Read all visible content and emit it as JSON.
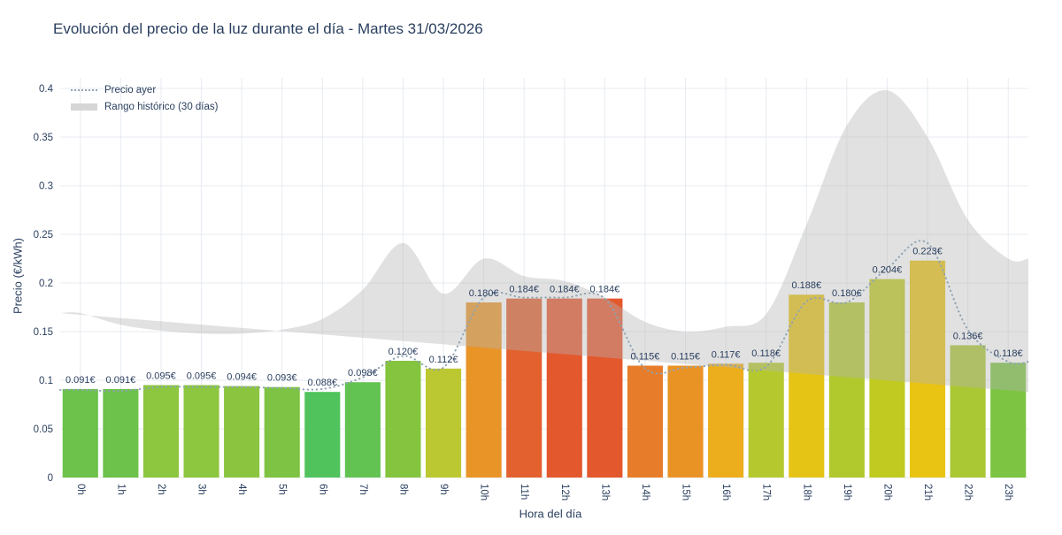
{
  "chart_data": {
    "type": "bar",
    "title": "Evolución del precio de la luz durante el día - Martes 31/03/2026",
    "xlabel": "Hora del día",
    "ylabel": "Precio (€/kWh)",
    "categories": [
      "0h",
      "1h",
      "2h",
      "3h",
      "4h",
      "5h",
      "6h",
      "7h",
      "8h",
      "9h",
      "10h",
      "11h",
      "12h",
      "13h",
      "14h",
      "15h",
      "16h",
      "17h",
      "18h",
      "19h",
      "20h",
      "21h",
      "22h",
      "23h"
    ],
    "bars": {
      "values": [
        0.091,
        0.091,
        0.095,
        0.095,
        0.094,
        0.093,
        0.088,
        0.098,
        0.12,
        0.112,
        0.18,
        0.184,
        0.184,
        0.184,
        0.115,
        0.115,
        0.117,
        0.118,
        0.188,
        0.18,
        0.204,
        0.223,
        0.136,
        0.118
      ],
      "labels": [
        "0.091€",
        "0.091€",
        "0.095€",
        "0.095€",
        "0.094€",
        "0.093€",
        "0.088€",
        "0.098€",
        "0.120€",
        "0.112€",
        "0.180€",
        "0.184€",
        "0.184€",
        "0.184€",
        "0.115€",
        "0.115€",
        "0.117€",
        "0.118€",
        "0.188€",
        "0.180€",
        "0.204€",
        "0.223€",
        "0.136€",
        "0.118€"
      ],
      "colors": [
        "#6cc24a",
        "#6cc24a",
        "#8dc63f",
        "#8dc63f",
        "#8bc540",
        "#7ec343",
        "#50c35c",
        "#62c352",
        "#84c43f",
        "#bcc832",
        "#e99427",
        "#e2612e",
        "#e4582d",
        "#e4582d",
        "#e77d2a",
        "#ea9325",
        "#ecae1d",
        "#b5c92e",
        "#e6c416",
        "#b2c92e",
        "#c0ca20",
        "#e9c412",
        "#aac734",
        "#7cc441"
      ]
    },
    "yesterday_line": {
      "legend_label": "Precio ayer",
      "color": "#8fa3b3",
      "values": [
        0.09,
        0.089,
        0.093,
        0.093,
        0.093,
        0.092,
        0.091,
        0.103,
        0.125,
        0.113,
        0.185,
        0.185,
        0.185,
        0.184,
        0.112,
        0.113,
        0.116,
        0.114,
        0.181,
        0.18,
        0.215,
        0.241,
        0.152,
        0.119
      ]
    },
    "historical_band": {
      "legend_label": "Rango histórico (30 días)",
      "color": "#b4b4b4",
      "opacity": 0.4,
      "max": [
        0.169,
        0.157,
        0.151,
        0.148,
        0.148,
        0.152,
        0.163,
        0.193,
        0.241,
        0.189,
        0.225,
        0.207,
        0.202,
        0.185,
        0.16,
        0.15,
        0.155,
        0.168,
        0.26,
        0.362,
        0.398,
        0.35,
        0.265,
        0.225
      ],
      "min": [
        0.085,
        0.085,
        0.084,
        0.084,
        0.084,
        0.085,
        0.086,
        0.084,
        0.08,
        0.078,
        0.066,
        0.058,
        0.05,
        0.044,
        0.053,
        0.057,
        0.06,
        0.064,
        0.079,
        0.086,
        0.086,
        0.087,
        0.088,
        0.088
      ]
    },
    "yticks": {
      "values": [
        0,
        0.05,
        0.1,
        0.15,
        0.2,
        0.25,
        0.3,
        0.35,
        0.4
      ],
      "labels": [
        "0",
        "0.05",
        "0.1",
        "0.15",
        "0.2",
        "0.25",
        "0.3",
        "0.35",
        "0.4"
      ]
    },
    "ylim": [
      0,
      0.4
    ],
    "grid": true,
    "legend_position": "top-left",
    "text_color": "#2a3f5f",
    "grid_color": "#e7ebf1"
  }
}
